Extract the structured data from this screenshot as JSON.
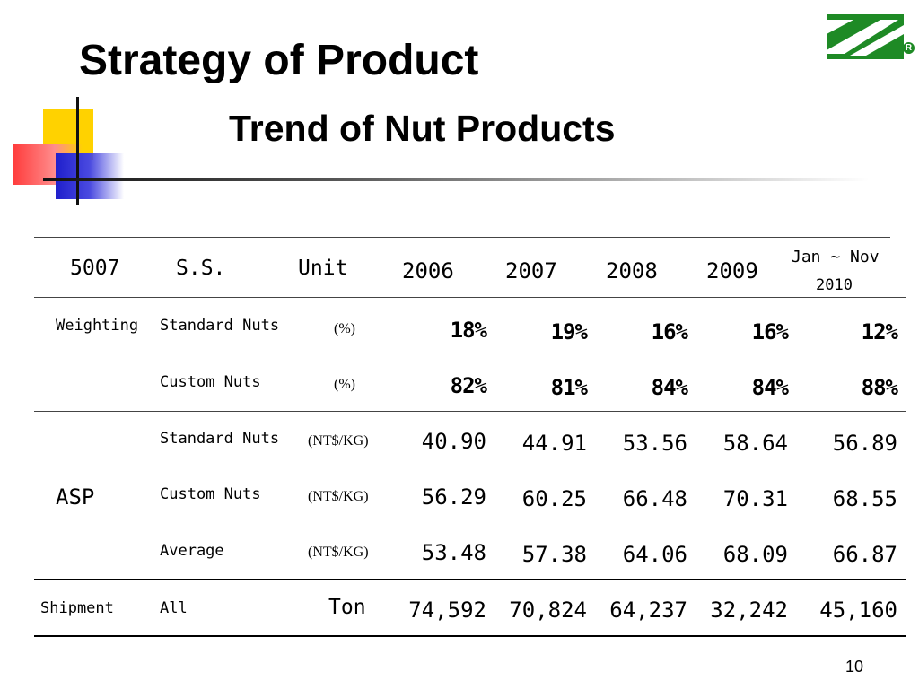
{
  "title": "Strategy of Product",
  "subtitle": "Trend of  Nut Products",
  "page_number": "10",
  "colors": {
    "logo_green": "#1e8a25",
    "accent_yellow": "#ffd200",
    "accent_red": "#ff3b3b",
    "accent_blue": "#1f1fcc"
  },
  "table": {
    "header": {
      "code": "5007",
      "ss": "S.S.",
      "unit": "Unit",
      "years": [
        "2006",
        "2007",
        "2008",
        "2009"
      ],
      "last_line1": "Jan ~ Nov",
      "last_line2": "2010"
    },
    "weighting": {
      "group": "Weighting",
      "rows": [
        {
          "label": "Standard Nuts",
          "unit": "(%)",
          "values": [
            "18%",
            "19%",
            "16%",
            "16%",
            "12%"
          ]
        },
        {
          "label": "Custom Nuts",
          "unit": "(%)",
          "values": [
            "82%",
            "81%",
            "84%",
            "84%",
            "88%"
          ]
        }
      ]
    },
    "asp": {
      "group": "ASP",
      "rows": [
        {
          "label": "Standard Nuts",
          "unit": "(NT$/KG)",
          "values": [
            "40.90",
            "44.91",
            "53.56",
            "58.64",
            "56.89"
          ]
        },
        {
          "label": "Custom Nuts",
          "unit": "(NT$/KG)",
          "values": [
            "56.29",
            "60.25",
            "66.48",
            "70.31",
            "68.55"
          ]
        },
        {
          "label": "Average",
          "unit": "(NT$/KG)",
          "values": [
            "53.48",
            "57.38",
            "64.06",
            "68.09",
            "66.87"
          ]
        }
      ]
    },
    "shipment": {
      "group": "Shipment",
      "label": "All",
      "unit": "Ton",
      "values": [
        "74,592",
        "70,824",
        "64,237",
        "32,242",
        "45,160"
      ]
    }
  }
}
